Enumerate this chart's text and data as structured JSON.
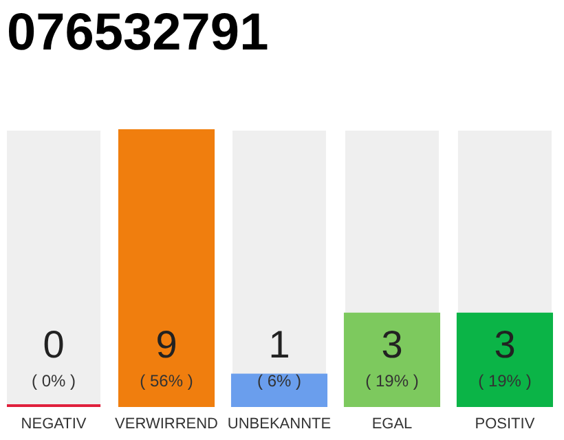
{
  "chart_data": {
    "type": "bar",
    "title": "076532791",
    "categories": [
      "NEGATIV",
      "VERWIRREND",
      "UNBEKANNTE",
      "EGAL",
      "POSITIV"
    ],
    "values": [
      0,
      9,
      1,
      3,
      3
    ],
    "colors": [
      "#e0203c",
      "#f07e0e",
      "#6a9eed",
      "#7dc95e",
      "#0bb447"
    ],
    "data_labels": true,
    "annotations": [
      "( 0% )",
      "( 56% )",
      "( 6% )",
      "( 19% )",
      "( 19% )"
    ]
  }
}
